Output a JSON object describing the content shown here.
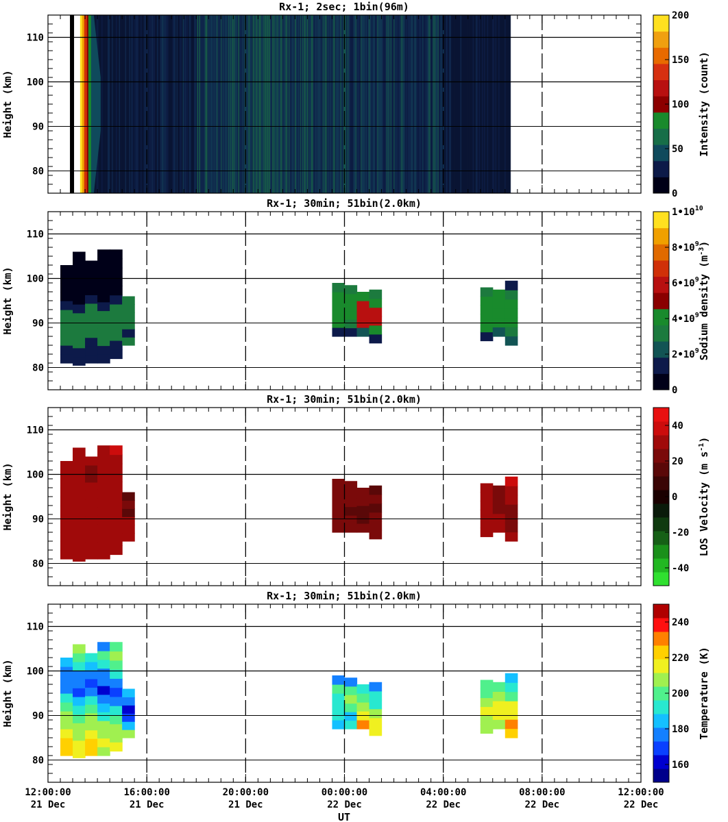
{
  "chart_data": [
    {
      "type": "heatmap",
      "title": "Rx-1;  2sec; 1bin(96m)",
      "ylabel": "Height (km)",
      "xlim": [
        0,
        24
      ],
      "ylim": [
        75,
        115
      ],
      "yticks": [
        80,
        90,
        100,
        110
      ],
      "colorbar": {
        "label": "Intensity (count)",
        "ticks": [
          "0",
          "50",
          "100",
          "150",
          "200"
        ],
        "range": [
          0,
          200
        ]
      },
      "data_coverage_ut_hours": [
        1.0,
        18.7
      ],
      "description_values": {
        "high_intensity_edge_ut": 1.3,
        "night_level_count": 40
      }
    },
    {
      "type": "heatmap",
      "title": "Rx-1; 30min; 51bin(2.0km)",
      "ylabel": "Height (km)",
      "xlim": [
        0,
        24
      ],
      "ylim": [
        75,
        115
      ],
      "yticks": [
        80,
        90,
        100,
        110
      ],
      "colorbar": {
        "label": "Sodium density",
        "unit": "m",
        "unit_exp": "-3",
        "range": [
          0,
          10000000000.0
        ],
        "ticks": [
          {
            "mant": "0",
            "exp": ""
          },
          {
            "mant": "2•10",
            "exp": "9"
          },
          {
            "mant": "4•10",
            "exp": "9"
          },
          {
            "mant": "6•10",
            "exp": "9"
          },
          {
            "mant": "8•10",
            "exp": "9"
          },
          {
            "mant": "1•10",
            "exp": "10"
          }
        ]
      },
      "blocks": [
        {
          "t0": 0.5,
          "bottom": 81,
          "top": 103,
          "profile": [
            1.5,
            1.5,
            3,
            3,
            3,
            3,
            1.5,
            0.5,
            0.5,
            0.3,
            0.3
          ]
        },
        {
          "t0": 1.0,
          "bottom": 80.5,
          "top": 106,
          "profile": [
            1,
            1.5,
            3,
            3.2,
            3,
            3,
            1.5,
            0.6,
            0.5,
            0.3,
            0.3,
            0.2,
            0.2
          ]
        },
        {
          "t0": 1.5,
          "bottom": 81,
          "top": 104,
          "profile": [
            1,
            1.5,
            3,
            3.2,
            3,
            3,
            1.5,
            0.6,
            0.5,
            0.3,
            0.3
          ]
        },
        {
          "t0": 2.0,
          "bottom": 81,
          "top": 106.5,
          "profile": [
            1,
            1.5,
            3.2,
            3.2,
            3,
            3,
            1.6,
            0.6,
            0.5,
            0.3,
            0.3,
            0.2,
            0.2
          ]
        },
        {
          "t0": 2.5,
          "bottom": 82,
          "top": 106.5,
          "profile": [
            1,
            1.5,
            3,
            3.2,
            3,
            3,
            1.5,
            0.6,
            0.5,
            0.3,
            0.3,
            0.2
          ]
        },
        {
          "t0": 3.0,
          "bottom": 85,
          "top": 96,
          "profile": [
            3,
            1.5,
            3,
            3,
            3.2,
            3
          ]
        },
        {
          "t0": 11.5,
          "bottom": 87,
          "top": 99,
          "profile": [
            1.5,
            4,
            4,
            4.2,
            4.2,
            3
          ]
        },
        {
          "t0": 12.0,
          "bottom": 87,
          "top": 98.5,
          "profile": [
            1.5,
            3.5,
            4,
            4.2,
            4,
            3
          ]
        },
        {
          "t0": 12.5,
          "bottom": 87,
          "top": 97,
          "profile": [
            2,
            5.5,
            6,
            6.2,
            4.2,
            4
          ]
        },
        {
          "t0": 13.0,
          "bottom": 85.5,
          "top": 97.5,
          "profile": [
            1.5,
            4,
            6,
            5.5,
            4,
            3
          ]
        },
        {
          "t0": 17.5,
          "bottom": 86,
          "top": 98,
          "profile": [
            1.5,
            4,
            4,
            4,
            4,
            3
          ]
        },
        {
          "t0": 18.0,
          "bottom": 87,
          "top": 97.5,
          "profile": [
            2,
            4,
            4.2,
            4,
            4,
            3
          ]
        },
        {
          "t0": 18.5,
          "bottom": 85,
          "top": 99.5,
          "profile": [
            2,
            3,
            4.5,
            4.2,
            4,
            3,
            1.5
          ]
        }
      ]
    },
    {
      "type": "heatmap",
      "title": "Rx-1; 30min; 51bin(2.0km)",
      "ylabel": "Height (km)",
      "xlim": [
        0,
        24
      ],
      "ylim": [
        75,
        115
      ],
      "yticks": [
        80,
        90,
        100,
        110
      ],
      "colorbar": {
        "label": "LOS Velocity",
        "unit": "m s",
        "unit_exp": "-1",
        "range": [
          -50,
          50
        ],
        "ticks": [
          "-40",
          "-20",
          "0",
          "20",
          "40"
        ]
      },
      "blocks": [
        {
          "t0": 0.5,
          "bottom": 81,
          "top": 103,
          "profile": [
            30,
            30,
            30,
            30,
            30,
            30,
            30,
            30,
            30,
            30,
            30
          ]
        },
        {
          "t0": 1.0,
          "bottom": 80.5,
          "top": 106,
          "profile": [
            30,
            30,
            30,
            30,
            30,
            30,
            30,
            30,
            30,
            30,
            30,
            30,
            30
          ]
        },
        {
          "t0": 1.5,
          "bottom": 81,
          "top": 104,
          "profile": [
            30,
            30,
            30,
            30,
            30,
            30,
            30,
            30,
            25,
            25,
            30
          ]
        },
        {
          "t0": 2.0,
          "bottom": 81,
          "top": 106.5,
          "profile": [
            30,
            30,
            30,
            30,
            30,
            30,
            30,
            30,
            30,
            30,
            30,
            30,
            30
          ]
        },
        {
          "t0": 2.5,
          "bottom": 82,
          "top": 106.5,
          "profile": [
            30,
            30,
            30,
            30,
            30,
            30,
            30,
            30,
            30,
            30,
            30,
            35
          ]
        },
        {
          "t0": 3.0,
          "bottom": 85,
          "top": 96,
          "profile": [
            30,
            30,
            30,
            15,
            20,
            15
          ]
        },
        {
          "t0": 11.5,
          "bottom": 87,
          "top": 99,
          "profile": [
            20,
            25,
            25,
            25,
            25,
            25
          ]
        },
        {
          "t0": 12.0,
          "bottom": 87,
          "top": 98.5,
          "profile": [
            20,
            20,
            18,
            25,
            25,
            25
          ]
        },
        {
          "t0": 12.5,
          "bottom": 87,
          "top": 97,
          "profile": [
            20,
            18,
            18,
            20,
            25,
            25
          ]
        },
        {
          "t0": 13.0,
          "bottom": 85.5,
          "top": 97.5,
          "profile": [
            20,
            20,
            20,
            18,
            20,
            18
          ]
        },
        {
          "t0": 17.5,
          "bottom": 86,
          "top": 98,
          "profile": [
            30,
            30,
            30,
            30,
            30,
            30
          ]
        },
        {
          "t0": 18.0,
          "bottom": 87,
          "top": 97.5,
          "profile": [
            30,
            30,
            25,
            25,
            25,
            30
          ]
        },
        {
          "t0": 18.5,
          "bottom": 85,
          "top": 99.5,
          "profile": [
            30,
            25,
            25,
            25,
            30,
            32,
            35
          ]
        }
      ]
    },
    {
      "type": "heatmap",
      "title": "Rx-1; 30min; 51bin(2.0km)",
      "ylabel": "Height (km)",
      "xlabel": "UT",
      "xlim": [
        0,
        24
      ],
      "ylim": [
        75,
        115
      ],
      "yticks": [
        80,
        90,
        100,
        110
      ],
      "xticks": [
        {
          "t": 0,
          "time": "12:00:00",
          "date": "21 Dec"
        },
        {
          "t": 4,
          "time": "16:00:00",
          "date": "21 Dec"
        },
        {
          "t": 8,
          "time": "20:00:00",
          "date": "21 Dec"
        },
        {
          "t": 12,
          "time": "00:00:00",
          "date": "22 Dec"
        },
        {
          "t": 16,
          "time": "04:00:00",
          "date": "22 Dec"
        },
        {
          "t": 20,
          "time": "08:00:00",
          "date": "22 Dec"
        },
        {
          "t": 24,
          "time": "12:00:00",
          "date": "22 Dec"
        }
      ],
      "colorbar": {
        "label": "Temperature (K)",
        "range": [
          150,
          250
        ],
        "ticks": [
          "160",
          "180",
          "200",
          "220",
          "240"
        ]
      },
      "blocks": [
        {
          "t0": 0.5,
          "bottom": 81,
          "top": 103,
          "profile": [
            225,
            220,
            215,
            210,
            205,
            200,
            190,
            180,
            175,
            180,
            185
          ]
        },
        {
          "t0": 1.0,
          "bottom": 80.5,
          "top": 106,
          "profile": [
            215,
            218,
            210,
            205,
            200,
            195,
            185,
            172,
            175,
            180,
            190,
            200,
            205
          ]
        },
        {
          "t0": 1.5,
          "bottom": 81,
          "top": 104,
          "profile": [
            220,
            215,
            210,
            208,
            200,
            190,
            180,
            170,
            175,
            185,
            195
          ]
        },
        {
          "t0": 2.0,
          "bottom": 81,
          "top": 106.5,
          "profile": [
            205,
            218,
            210,
            205,
            195,
            185,
            175,
            165,
            175,
            180,
            195,
            200,
            180
          ]
        },
        {
          "t0": 2.5,
          "bottom": 82,
          "top": 106.5,
          "profile": [
            215,
            210,
            205,
            200,
            190,
            180,
            172,
            180,
            190,
            200,
            205,
            200
          ]
        },
        {
          "t0": 3.0,
          "bottom": 85,
          "top": 96,
          "profile": [
            210,
            185,
            170,
            165,
            175,
            185
          ]
        },
        {
          "t0": 11.5,
          "bottom": 87,
          "top": 99,
          "profile": [
            188,
            195,
            190,
            195,
            200,
            175
          ]
        },
        {
          "t0": 12.0,
          "bottom": 87,
          "top": 98.5,
          "profile": [
            190,
            188,
            200,
            205,
            200,
            180
          ]
        },
        {
          "t0": 12.5,
          "bottom": 87,
          "top": 97,
          "profile": [
            228,
            215,
            210,
            200,
            195,
            180
          ]
        },
        {
          "t0": 13.0,
          "bottom": 85.5,
          "top": 97.5,
          "profile": [
            218,
            215,
            205,
            190,
            190,
            180
          ]
        },
        {
          "t0": 17.5,
          "bottom": 86,
          "top": 98,
          "profile": [
            210,
            210,
            215,
            205,
            200,
            200
          ]
        },
        {
          "t0": 18.0,
          "bottom": 87,
          "top": 97.5,
          "profile": [
            210,
            215,
            215,
            205,
            200,
            195
          ]
        },
        {
          "t0": 18.5,
          "bottom": 85,
          "top": 99.5,
          "profile": [
            220,
            228,
            215,
            215,
            200,
            195,
            185
          ]
        }
      ]
    }
  ]
}
